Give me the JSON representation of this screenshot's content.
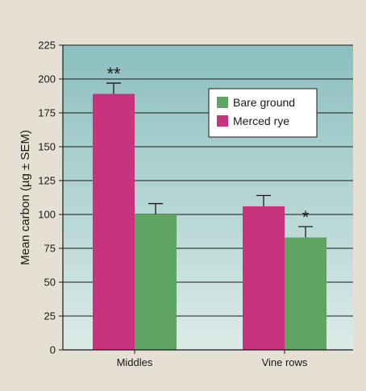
{
  "chart_data": {
    "type": "bar",
    "ylabel": "Mean carbon (µg ± SEM)",
    "xlabel": "",
    "ylim": [
      0,
      225
    ],
    "yticks": [
      0,
      25,
      50,
      75,
      100,
      125,
      150,
      175,
      200,
      225
    ],
    "categories": [
      "Middles",
      "Vine rows"
    ],
    "series": [
      {
        "name": "Merced rye",
        "color": "#c8337e",
        "values": [
          189,
          106
        ],
        "errors": [
          8,
          8
        ]
      },
      {
        "name": "Bare ground",
        "color": "#5fa463",
        "values": [
          100,
          83
        ],
        "errors": [
          8,
          8
        ]
      }
    ],
    "legend": {
      "position": "top-right",
      "items": [
        {
          "label": "Bare ground",
          "color": "#5fa463"
        },
        {
          "label": "Merced rye",
          "color": "#c8337e"
        }
      ]
    },
    "annotations": [
      {
        "text": "**",
        "category": "Middles",
        "series": "Merced rye"
      },
      {
        "text": "*",
        "category": "Vine rows",
        "series": "Bare ground"
      }
    ],
    "grid": true,
    "background_gradient": [
      "#8bbfbf",
      "#dcebe8"
    ]
  }
}
